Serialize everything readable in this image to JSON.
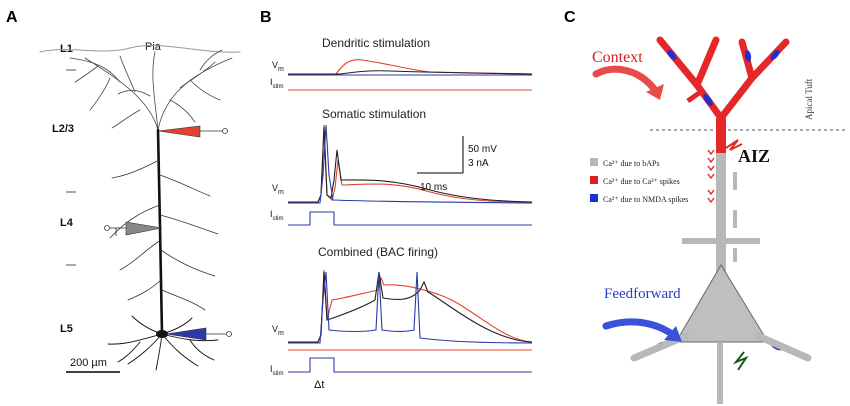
{
  "panels": {
    "a": {
      "letter": "A",
      "pia": "Pia",
      "layers": [
        "L1",
        "L2/3",
        "L4",
        "L5"
      ],
      "scale_bar": "200 µm"
    },
    "b": {
      "letter": "B",
      "titles": [
        "Dendritic stimulation",
        "Somatic stimulation",
        "Combined (BAC firing)"
      ],
      "vm": "V",
      "vm_sub": "m",
      "istim": "I",
      "istim_sub": "stim",
      "scale_mv": "50  mV",
      "scale_na": "3 nA",
      "scale_ms": "10 ms",
      "delta_t": "Δt",
      "trace_colors": {
        "red": "#e0442e",
        "black": "#202020",
        "blue": "#2b3aa6"
      }
    },
    "c": {
      "letter": "C",
      "context": "Context",
      "apical_tuft": "Apical Tuft",
      "aiz": "AIZ",
      "feedforward": "Feedforward",
      "legend": [
        {
          "text": "Ca²⁺ due to bAPs",
          "color": "#b8b8b8"
        },
        {
          "text": "Ca²⁺ due to Ca²⁺ spikes",
          "color": "#e02020"
        },
        {
          "text": "Ca²⁺ due to NMDA spikes",
          "color": "#2030d0"
        }
      ]
    }
  }
}
